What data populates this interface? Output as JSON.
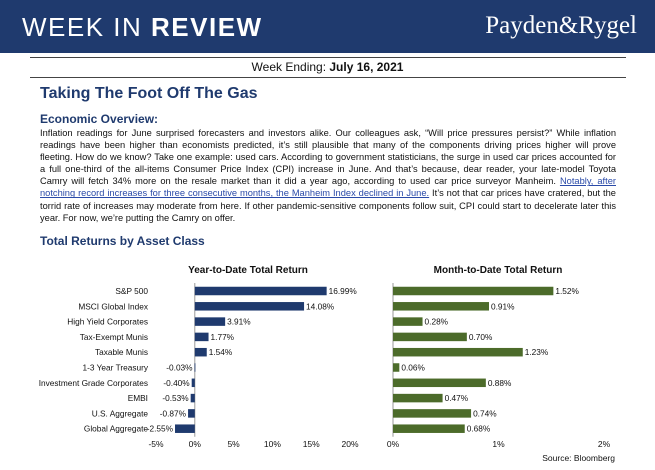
{
  "header": {
    "title_light": "WEEK IN ",
    "title_bold": "REVIEW",
    "logo": "Payden&Rygel"
  },
  "week_ending": {
    "label": "Week Ending: ",
    "date": "July 16, 2021"
  },
  "article": {
    "headline": "Taking The Foot Off The Gas",
    "section_heading": "Economic Overview:",
    "body_before_link": "Inflation readings for June surprised forecasters and investors alike. Our colleagues ask, “Will price pressures persist?” While inflation readings have been higher than economists predicted, it’s still plausible that many of the components driving prices higher will prove fleeting. How do we know? Take one example: used cars. According to government statisticians, the surge in used car prices accounted for a full one-third of the all-items Consumer Price Index (CPI) increase in June. And that’s because, dear reader, your late-model Toyota Camry will fetch 34% more on the resale market than it did a year ago, according to used car price surveyor Manheim. ",
    "link_text": "Notably, after notching record increases for three consecutive months, the Manheim Index declined in June.",
    "body_after_link": " It’s not that car prices have cratered, but the torrid rate of increases may moderate from here. If other pandemic-sensitive components follow suit, CPI could start to decelerate later this year. For now, we’re putting the Camry on offer."
  },
  "returns_heading": "Total Returns by Asset Class",
  "source": "Source: Bloomberg",
  "colors": {
    "navy": "#1f3a6e",
    "green": "#4c6b2a"
  },
  "chart_data": [
    {
      "type": "bar",
      "orientation": "horizontal",
      "title": "Year-to-Date Total Return",
      "categories": [
        "S&P 500",
        "MSCI Global Index",
        "High Yield Corporates",
        "Tax-Exempt Munis",
        "Taxable Munis",
        "1-3 Year Treasury",
        "Investment Grade Corporates",
        "EMBI",
        "U.S. Aggregate",
        "Global Aggregate"
      ],
      "values": [
        16.99,
        14.08,
        3.91,
        1.77,
        1.54,
        -0.03,
        -0.4,
        -0.53,
        -0.87,
        -2.55
      ],
      "labels": [
        "16.99%",
        "14.08%",
        "3.91%",
        "1.77%",
        "1.54%",
        "-0.03%",
        "-0.40%",
        "-0.53%",
        "-0.87%",
        "-2.55%"
      ],
      "xlim": [
        -5,
        20
      ],
      "ticks": [
        -5,
        0,
        5,
        10,
        15,
        20
      ],
      "tick_labels": [
        "-5%",
        "0%",
        "5%",
        "10%",
        "15%",
        "20%"
      ],
      "color": "#1f3a6e"
    },
    {
      "type": "bar",
      "orientation": "horizontal",
      "title": "Month-to-Date Total Return",
      "categories": [
        "S&P 500",
        "MSCI Global Index",
        "High Yield Corporates",
        "Tax-Exempt Munis",
        "Taxable Munis",
        "1-3 Year Treasury",
        "Investment Grade Corporates",
        "EMBI",
        "U.S. Aggregate",
        "Global Aggregate"
      ],
      "values": [
        1.52,
        0.91,
        0.28,
        0.7,
        1.23,
        0.06,
        0.88,
        0.47,
        0.74,
        0.68
      ],
      "labels": [
        "1.52%",
        "0.91%",
        "0.28%",
        "0.70%",
        "1.23%",
        "0.06%",
        "0.88%",
        "0.47%",
        "0.74%",
        "0.68%"
      ],
      "xlim": [
        0,
        2
      ],
      "ticks": [
        0,
        1,
        2
      ],
      "tick_labels": [
        "0%",
        "1%",
        "2%"
      ],
      "color": "#4c6b2a"
    }
  ]
}
